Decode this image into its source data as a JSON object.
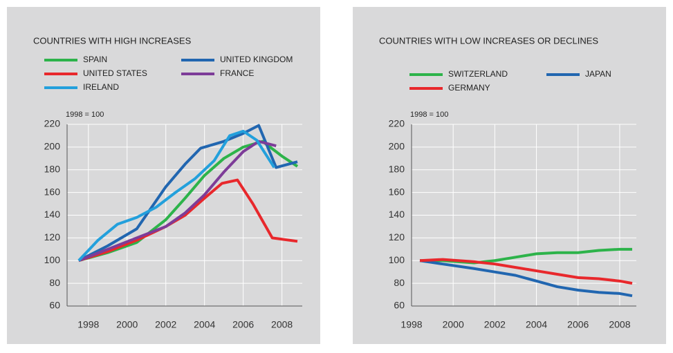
{
  "chart_data": [
    {
      "type": "line",
      "title": "COUNTRIES WITH HIGH INCREASES",
      "subtitle": "1998 = 100",
      "xlim": [
        1996.9,
        2009.05
      ],
      "ylim": [
        60,
        220
      ],
      "xticks": [
        1998,
        2000,
        2002,
        2004,
        2006,
        2008
      ],
      "yticks": [
        60,
        80,
        100,
        120,
        140,
        160,
        180,
        200,
        220
      ],
      "series": [
        {
          "name": "SPAIN",
          "color": "#2db34a",
          "x": [
            1997.5,
            1999,
            2000.5,
            2002,
            2003,
            2004,
            2005,
            2006,
            2007,
            2008,
            2008.8
          ],
          "values": [
            100,
            107,
            116,
            136,
            155,
            175,
            190,
            200,
            205,
            192,
            183
          ]
        },
        {
          "name": "UNITED KINGDOM",
          "color": "#2166b0",
          "x": [
            1997.5,
            1999,
            2000.5,
            2002,
            2003,
            2003.8,
            2005,
            2006,
            2006.8,
            2007.7,
            2008.8
          ],
          "values": [
            100,
            113,
            128,
            165,
            185,
            199,
            205,
            212,
            219,
            182,
            187
          ]
        },
        {
          "name": "UNITED STATES",
          "color": "#e8282c",
          "x": [
            1997.5,
            1999,
            2000.5,
            2002,
            2003,
            2004,
            2004.9,
            2005.7,
            2006.5,
            2007.5,
            2008.8
          ],
          "values": [
            100,
            108,
            118,
            130,
            140,
            155,
            168,
            171,
            150,
            120,
            117
          ]
        },
        {
          "name": "FRANCE",
          "color": "#7d3c98",
          "x": [
            1997.5,
            1999,
            2000.5,
            2002,
            2003,
            2004,
            2005,
            2006,
            2006.8,
            2007.7
          ],
          "values": [
            100,
            110,
            120,
            130,
            142,
            158,
            178,
            196,
            205,
            201
          ]
        },
        {
          "name": "IRELAND",
          "color": "#23a0dc",
          "x": [
            1997.5,
            1998.5,
            1999.5,
            2000.5,
            2001.5,
            2002.5,
            2003.5,
            2004.5,
            2005.3,
            2006,
            2006.7,
            2007.6
          ],
          "values": [
            100,
            118,
            132,
            138,
            147,
            160,
            172,
            188,
            210,
            214,
            206,
            182
          ]
        }
      ]
    },
    {
      "type": "line",
      "title": "COUNTRIES WITH LOW INCREASES OR DECLINES",
      "subtitle": "1998 = 100",
      "xlim": [
        1998,
        2008.8
      ],
      "ylim": [
        60,
        220
      ],
      "xticks": [
        1998,
        2000,
        2002,
        2004,
        2006,
        2008
      ],
      "yticks": [
        60,
        80,
        100,
        120,
        140,
        160,
        180,
        200,
        220
      ],
      "series": [
        {
          "name": "SWITZERLAND",
          "color": "#2db34a",
          "x": [
            1998.4,
            1999.5,
            2001,
            2002,
            2003,
            2004,
            2005,
            2006,
            2007,
            2008,
            2008.6
          ],
          "values": [
            100,
            100,
            98,
            100,
            103,
            106,
            107,
            107,
            109,
            110,
            110
          ]
        },
        {
          "name": "JAPAN",
          "color": "#2166b0",
          "x": [
            1998.4,
            1999.5,
            2001,
            2002,
            2003,
            2004,
            2005,
            2006,
            2007,
            2008,
            2008.6
          ],
          "values": [
            100,
            97,
            93,
            90,
            87,
            82,
            77,
            74,
            72,
            71,
            69
          ]
        },
        {
          "name": "GERMANY",
          "color": "#e8282c",
          "x": [
            1998.4,
            1999.5,
            2001,
            2002,
            2003,
            2004,
            2005,
            2006,
            2007,
            2008,
            2008.6
          ],
          "values": [
            100,
            101,
            99,
            97,
            94,
            91,
            88,
            85,
            84,
            82,
            80
          ]
        }
      ]
    }
  ]
}
